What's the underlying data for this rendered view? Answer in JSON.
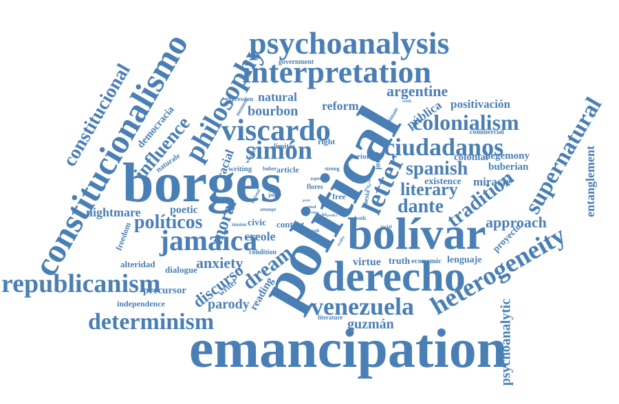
{
  "color": "#4a7fb5",
  "words": {
    "borges": "borges",
    "political": "political",
    "emancipation": "emancipation",
    "bolivar": "bolívar",
    "derecho": "derecho",
    "constitucionalismo": "constitucionalismo",
    "psychoanalysis": "psychoanalysis",
    "interpretation": "interpretation",
    "republicanism": "republicanism",
    "determinism": "determinism",
    "heterogeneity": "heterogeneity",
    "viscardo": "viscardo",
    "ciudadanos": "ciudadanos",
    "venezuela": "venezuela",
    "jamaica": "jamaica",
    "simon": "simón",
    "philosophy": "philosophy",
    "constitucional": "constitucional",
    "colonialism": "colonialism",
    "spanish": "spanish",
    "letter": "letter",
    "supernatural": "supernatural",
    "dante": "dante",
    "literary": "literary",
    "tradition": "tradition",
    "dream": "dream",
    "discurso": "discurso",
    "influence": "influence",
    "politicos": "políticos",
    "moral": "moral",
    "argentine": "argentine",
    "approach": "approach",
    "anxiety": "anxiety",
    "parody": "parody",
    "guzman": "guzmán",
    "psychoanalytic": "psychoanalytic",
    "entanglement": "entanglement",
    "nightmare": "nightmare",
    "democracia": "democracia",
    "bourbon": "bourbon",
    "natural": "natural",
    "reform": "reform",
    "publica": "pública",
    "positivacion": "positivación",
    "hegemony": "hegemony",
    "buberian": "buberian",
    "miracle": "miracle",
    "existence": "existence",
    "colonial": "colonial",
    "commercial": "commercial",
    "racial": "racial",
    "creole": "creole",
    "civic": "civic",
    "poetic": "poetic",
    "context": "context",
    "virtue": "virtue",
    "truth": "truth",
    "economic": "economic",
    "lenguaje": "lenguaje",
    "proyecto": "proyecto",
    "reading": "reading",
    "precursor": "precursor",
    "alteridad": "alteridad",
    "dialogue": "dialogue",
    "independence": "independence",
    "writer": "writer",
    "freedom": "freedom",
    "naturale": "naturale",
    "limites": "límites",
    "right": "right",
    "period": "period",
    "article": "article",
    "writing": "writing",
    "jorge": "jorge",
    "poesia": "poesía",
    "free": "free",
    "flores": "flores",
    "slavery": "slavery",
    "condition": "condition",
    "literature": "literature",
    "expression": "expression",
    "government": "government",
    "moment": "moment",
    "legitimate": "legitimate",
    "western": "western",
    "strong": "strong",
    "buber": "buber",
    "aspect": "aspect",
    "death": "death",
    "jaime": "jaime",
    "attempt": "attempt",
    "tension": "tension",
    "revolt": "revolt",
    "present": "present",
    "order": "order",
    "social": "social",
    "reality": "reality",
    "sense": "sense",
    "view": "view",
    "work": "work",
    "mind": "mind",
    "life": "life",
    "lul": "lul",
    "predict": "predict",
    "great": "great"
  }
}
